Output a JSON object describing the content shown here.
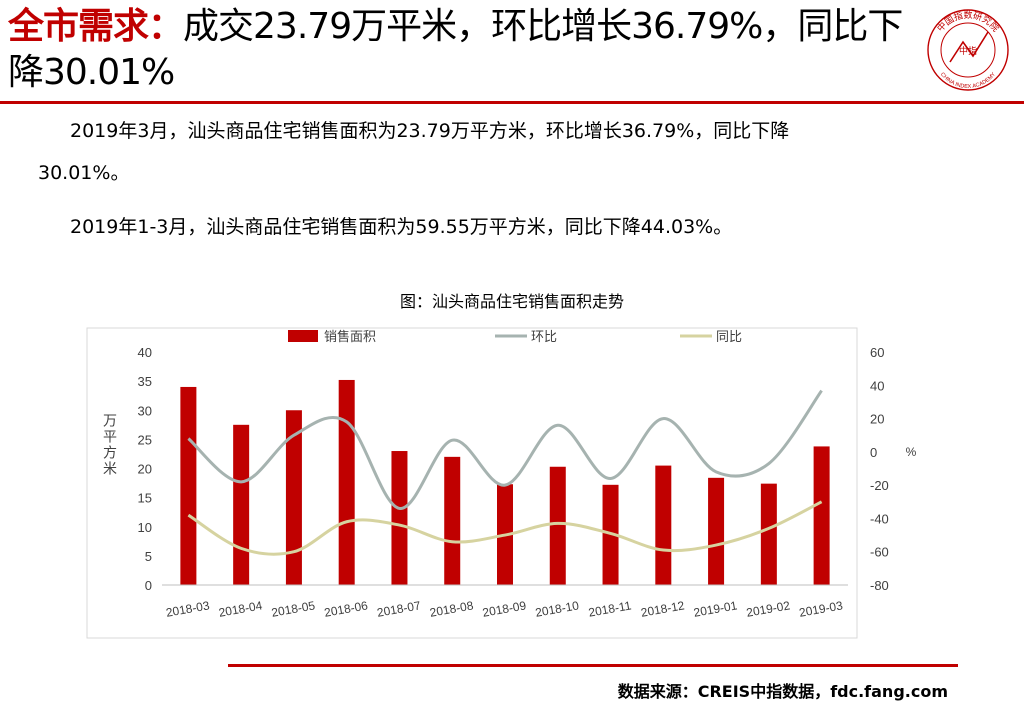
{
  "header": {
    "key": "全市需求",
    "colon": "：",
    "text": "成交23.79万平米，环比增长36.79%，同比下降30.01%"
  },
  "logo": {
    "center_text": "中指",
    "ring_text": "中国指数研究院",
    "english_text": "CHINA INDEX ACADEMY",
    "accent": "#c00000"
  },
  "paragraphs": {
    "p1_line1": "2019年3月，汕头商品住宅销售面积为23.79万平方米，环比增长36.79%，同比下降",
    "p1_line2": "30.01%。",
    "p2": "2019年1-3月，汕头商品住宅销售面积为59.55万平方米，同比下降44.03%。"
  },
  "chart_title": "图：汕头商品住宅销售面积走势",
  "chart_data": {
    "type": "bar",
    "categories": [
      "2018-03",
      "2018-04",
      "2018-05",
      "2018-06",
      "2018-07",
      "2018-08",
      "2018-09",
      "2018-10",
      "2018-11",
      "2018-12",
      "2019-01",
      "2019-02",
      "2019-03"
    ],
    "series": [
      {
        "name": "销售面积",
        "type": "bar",
        "axis": "left",
        "color": "#c00000",
        "values": [
          34.0,
          27.5,
          30.0,
          35.2,
          23.0,
          22.0,
          17.3,
          20.3,
          17.2,
          20.5,
          18.4,
          17.4,
          23.79
        ]
      },
      {
        "name": "环比",
        "type": "line",
        "axis": "right",
        "color": "#a6b3b0",
        "values": [
          8,
          -18,
          10,
          18,
          -34,
          7,
          -20,
          16,
          -16,
          20,
          -12,
          -7,
          36.79
        ]
      },
      {
        "name": "同比",
        "type": "line",
        "axis": "right",
        "color": "#d6d3a0",
        "values": [
          -38,
          -58,
          -60,
          -42,
          -44,
          -54,
          -50,
          -43,
          -49,
          -59,
          -56,
          -46,
          -30.01
        ]
      }
    ],
    "y_left": {
      "label": "万平方米",
      "min": 0,
      "max": 40,
      "ticks": [
        "0",
        "5",
        "10",
        "15",
        "20",
        "25",
        "30",
        "35",
        "40"
      ]
    },
    "y_right": {
      "label": "%",
      "min": -80,
      "max": 60,
      "ticks": [
        "-80",
        "-60",
        "-40",
        "-20",
        "0",
        "20",
        "40",
        "60"
      ]
    },
    "legend_position": "top",
    "grid": false
  },
  "source": "数据来源：CREIS中指数据，fdc.fang.com"
}
